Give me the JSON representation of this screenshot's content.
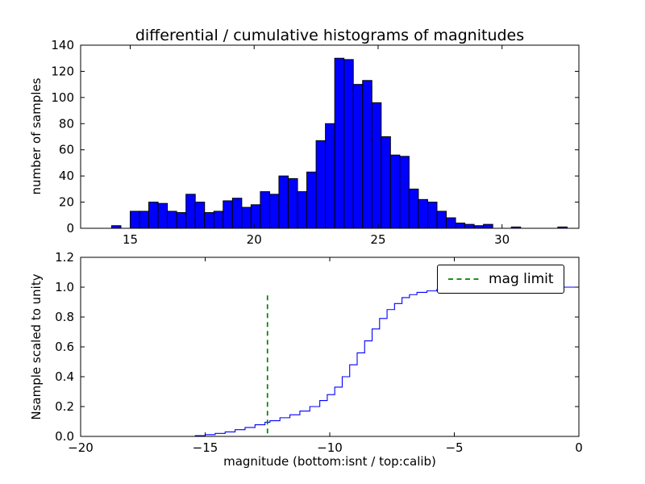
{
  "figure": {
    "background": "#ffffff",
    "colors": {
      "bar_fill": "#0000ff",
      "bar_edge": "#000000",
      "step_line": "#0000ff",
      "mag_limit": "#008000",
      "axes": "#000000",
      "text": "#000000"
    }
  },
  "chart_data": [
    {
      "type": "bar",
      "title": "differential / cumulative histograms of magnitudes",
      "ylabel": "number of samples",
      "xlim": [
        13.0,
        33.1
      ],
      "ylim": [
        0,
        140
      ],
      "grid": false,
      "xtick_values": [
        15,
        20,
        25,
        30
      ],
      "xtick_labels": [
        "15",
        "20",
        "25",
        "30"
      ],
      "ytick_values": [
        0,
        20,
        40,
        60,
        80,
        100,
        120,
        140
      ],
      "ytick_labels": [
        "0",
        "20",
        "40",
        "60",
        "80",
        "100",
        "120",
        "140"
      ],
      "bin_start": 14.25,
      "bin_width": 0.375,
      "values": [
        2,
        0,
        13,
        13,
        20,
        19,
        13,
        12,
        26,
        20,
        12,
        13,
        21,
        23,
        16,
        18,
        28,
        26,
        40,
        38,
        28,
        43,
        67,
        80,
        130,
        129,
        110,
        113,
        96,
        70,
        56,
        55,
        30,
        22,
        20,
        13,
        8,
        4,
        3,
        2,
        3,
        0,
        0,
        1,
        0,
        0,
        0,
        0,
        1,
        0
      ]
    },
    {
      "type": "line",
      "style": "cumulative-step",
      "ylabel": "Nsample scaled to unity",
      "xlabel": "magnitude (bottom:isnt / top:calib)",
      "xlim": [
        -20,
        0
      ],
      "ylim": [
        0,
        1.2
      ],
      "grid": false,
      "xtick_values": [
        -20,
        -15,
        -10,
        -5,
        0
      ],
      "xtick_labels": [
        "−20",
        "−15",
        "−10",
        "−5",
        "0"
      ],
      "ytick_values": [
        0,
        0.2,
        0.4,
        0.6,
        0.8,
        1.0,
        1.2
      ],
      "ytick_labels": [
        "0.0",
        "0.2",
        "0.4",
        "0.6",
        "0.8",
        "1.0",
        "1.2"
      ],
      "points": [
        [
          -20,
          0
        ],
        [
          -15.8,
          0
        ],
        [
          -15.4,
          0.005
        ],
        [
          -15,
          0.012
        ],
        [
          -14.6,
          0.02
        ],
        [
          -14.2,
          0.03
        ],
        [
          -13.8,
          0.045
        ],
        [
          -13.4,
          0.06
        ],
        [
          -13,
          0.078
        ],
        [
          -12.6,
          0.095
        ],
        [
          -12.4,
          0.105
        ],
        [
          -12,
          0.125
        ],
        [
          -11.6,
          0.145
        ],
        [
          -11.2,
          0.17
        ],
        [
          -10.8,
          0.2
        ],
        [
          -10.4,
          0.24
        ],
        [
          -10.1,
          0.28
        ],
        [
          -9.8,
          0.33
        ],
        [
          -9.5,
          0.4
        ],
        [
          -9.2,
          0.48
        ],
        [
          -8.9,
          0.56
        ],
        [
          -8.6,
          0.64
        ],
        [
          -8.3,
          0.72
        ],
        [
          -8,
          0.79
        ],
        [
          -7.7,
          0.85
        ],
        [
          -7.4,
          0.89
        ],
        [
          -7.1,
          0.93
        ],
        [
          -6.8,
          0.95
        ],
        [
          -6.5,
          0.965
        ],
        [
          -6.1,
          0.975
        ],
        [
          -5.7,
          0.985
        ],
        [
          -5.3,
          0.992
        ],
        [
          -4.9,
          1
        ],
        [
          0,
          1
        ]
      ],
      "mag_limit": {
        "x": -12.5,
        "y_range": [
          0.02,
          0.96
        ],
        "line_style": "dashed"
      },
      "legend": {
        "position": "upper right",
        "entries": [
          {
            "label": "mag limit",
            "color": "#008000",
            "style": "dashed"
          }
        ]
      }
    }
  ]
}
